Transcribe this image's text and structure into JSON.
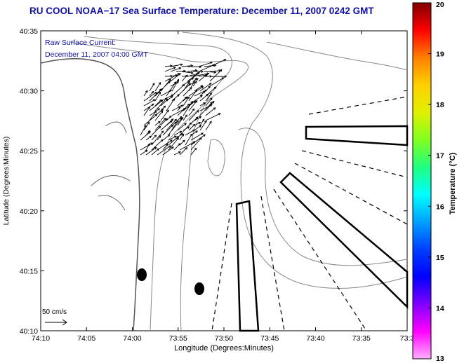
{
  "title": "RU COOL  NOAA−17  Sea Surface Temperature:  December 11, 2007 0242 GMT",
  "annotation": {
    "line1": "Raw Surface Current:",
    "line2": "December 11, 2007 04:00 GMT"
  },
  "axes": {
    "xlabel": "Longitude (Degrees:Minutes)",
    "ylabel": "Latitude (Degrees:Minutes)",
    "x_ticks": [
      "74:10",
      "74:05",
      "74:00",
      "73:55",
      "73:50",
      "73:45",
      "73:40",
      "73:35",
      "73:3"
    ],
    "y_ticks": [
      "40:35",
      "40:30",
      "40:25",
      "40:20",
      "40:15",
      "40:10"
    ]
  },
  "scale_label": "50 cm/s",
  "colorbar": {
    "label": "Temperature (°C)",
    "ticks": [
      "20",
      "19",
      "18",
      "17",
      "16",
      "15",
      "14",
      "13"
    ],
    "colors": [
      "#800000",
      "#ff0000",
      "#ff8000",
      "#ffd000",
      "#e0f000",
      "#80ff20",
      "#20ff80",
      "#00ffff",
      "#00a0ff",
      "#0040ff",
      "#0000ff",
      "#8000ff",
      "#ff00ff",
      "#ffb0ff"
    ]
  },
  "icons": [
    "arrow-field-icon",
    "scale-arrow-icon",
    "buoy-marker-icon"
  ]
}
